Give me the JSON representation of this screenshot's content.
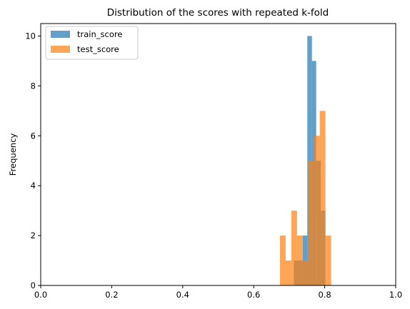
{
  "chart_data": {
    "type": "bar",
    "title": "Distribution of the scores with repeated k-fold",
    "xlabel": "",
    "ylabel": "Frequency",
    "xlim": [
      0.0,
      1.0
    ],
    "ylim": [
      0,
      10.5
    ],
    "x_ticks": [
      "0.0",
      "0.2",
      "0.4",
      "0.6",
      "0.8",
      "1.0"
    ],
    "y_ticks": [
      "0",
      "2",
      "4",
      "6",
      "8",
      "10"
    ],
    "grid": false,
    "legend_position": "upper-left",
    "series": [
      {
        "name": "train_score",
        "color": "#1f77b4",
        "opacity": 0.7,
        "bins": [
          {
            "x0": 0.713,
            "x1": 0.726,
            "count": 1
          },
          {
            "x0": 0.726,
            "x1": 0.738,
            "count": 1
          },
          {
            "x0": 0.738,
            "x1": 0.751,
            "count": 2
          },
          {
            "x0": 0.751,
            "x1": 0.764,
            "count": 10
          },
          {
            "x0": 0.764,
            "x1": 0.776,
            "count": 9
          },
          {
            "x0": 0.776,
            "x1": 0.789,
            "count": 5
          },
          {
            "x0": 0.789,
            "x1": 0.802,
            "count": 3
          }
        ]
      },
      {
        "name": "test_score",
        "color": "#ff7f0e",
        "opacity": 0.7,
        "bins": [
          {
            "x0": 0.674,
            "x1": 0.69,
            "count": 2
          },
          {
            "x0": 0.69,
            "x1": 0.706,
            "count": 1
          },
          {
            "x0": 0.706,
            "x1": 0.722,
            "count": 3
          },
          {
            "x0": 0.722,
            "x1": 0.738,
            "count": 2
          },
          {
            "x0": 0.738,
            "x1": 0.754,
            "count": 1
          },
          {
            "x0": 0.754,
            "x1": 0.77,
            "count": 5
          },
          {
            "x0": 0.77,
            "x1": 0.786,
            "count": 6
          },
          {
            "x0": 0.786,
            "x1": 0.802,
            "count": 7
          },
          {
            "x0": 0.802,
            "x1": 0.818,
            "count": 2
          }
        ]
      }
    ]
  }
}
